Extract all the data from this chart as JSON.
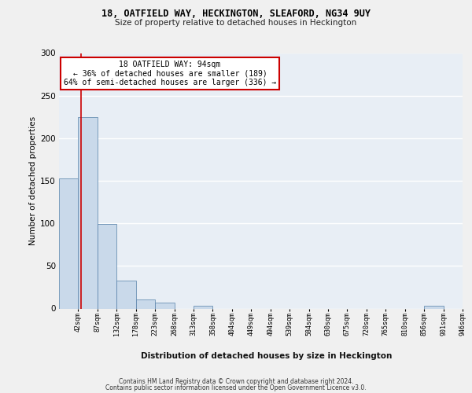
{
  "title": "18, OATFIELD WAY, HECKINGTON, SLEAFORD, NG34 9UY",
  "subtitle": "Size of property relative to detached houses in Heckington",
  "xlabel": "Distribution of detached houses by size in Heckington",
  "ylabel": "Number of detached properties",
  "bin_labels": [
    "42sqm",
    "87sqm",
    "132sqm",
    "178sqm",
    "223sqm",
    "268sqm",
    "313sqm",
    "358sqm",
    "404sqm",
    "449sqm",
    "494sqm",
    "539sqm",
    "584sqm",
    "630sqm",
    "675sqm",
    "720sqm",
    "765sqm",
    "810sqm",
    "856sqm",
    "901sqm",
    "946sqm"
  ],
  "bar_values": [
    153,
    225,
    99,
    33,
    11,
    7,
    0,
    3,
    0,
    0,
    0,
    0,
    0,
    0,
    0,
    0,
    0,
    0,
    0,
    3,
    0
  ],
  "bar_color": "#c9d9ea",
  "bar_edge_color": "#5580a8",
  "vline_color": "#cc0000",
  "annotation_text": "18 OATFIELD WAY: 94sqm\n← 36% of detached houses are smaller (189)\n64% of semi-detached houses are larger (336) →",
  "annotation_box_color": "#ffffff",
  "annotation_box_edge_color": "#cc0000",
  "ylim": [
    0,
    300
  ],
  "yticks": [
    0,
    50,
    100,
    150,
    200,
    250,
    300
  ],
  "bg_color": "#e8eef5",
  "fig_bg_color": "#f0f0f0",
  "grid_color": "#ffffff",
  "footer_line1": "Contains HM Land Registry data © Crown copyright and database right 2024.",
  "footer_line2": "Contains public sector information licensed under the Open Government Licence v3.0."
}
